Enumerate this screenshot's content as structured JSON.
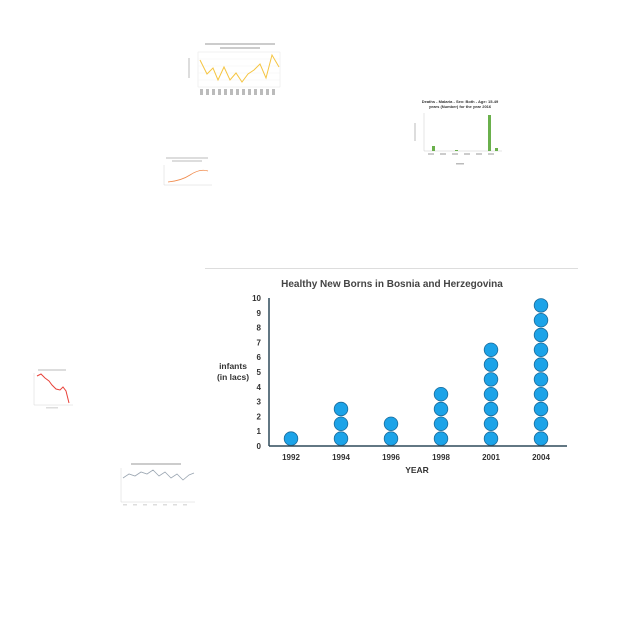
{
  "chart_data": {
    "type": "pictograph",
    "title": "Healthy New Borns in Bosnia and Herzegovina",
    "xlabel": "YEAR",
    "ylabel": "infants (in lacs)",
    "ylabel_lines": [
      "infants",
      "(in lacs)"
    ],
    "categories": [
      "1992",
      "1994",
      "1996",
      "1998",
      "2001",
      "2004"
    ],
    "values": [
      1,
      3,
      2,
      4,
      7,
      10
    ],
    "ylim": [
      0,
      10
    ],
    "yticks": [
      "0",
      "1",
      "2",
      "3",
      "4",
      "5",
      "6",
      "7",
      "8",
      "9",
      "10"
    ],
    "grid": false,
    "marker_color": "#1ca3e8",
    "marker_stroke": "#1a6a9a",
    "axis_color": "#2e4a5a"
  },
  "thumbnails": {
    "deaths_malaria": {
      "title_lines": [
        "Deaths - Malaria - Sex: Both - Age: 15-49",
        "years (Number) for the year 2016"
      ],
      "bar_color": "#6ab04c"
    },
    "yellow_line": {
      "line_color": "#f5c542"
    },
    "orange_line": {
      "line_color": "#f08a4b"
    },
    "red_line": {
      "line_color": "#e8423a"
    },
    "gray_line": {
      "line_color": "#9aa5b1"
    }
  }
}
